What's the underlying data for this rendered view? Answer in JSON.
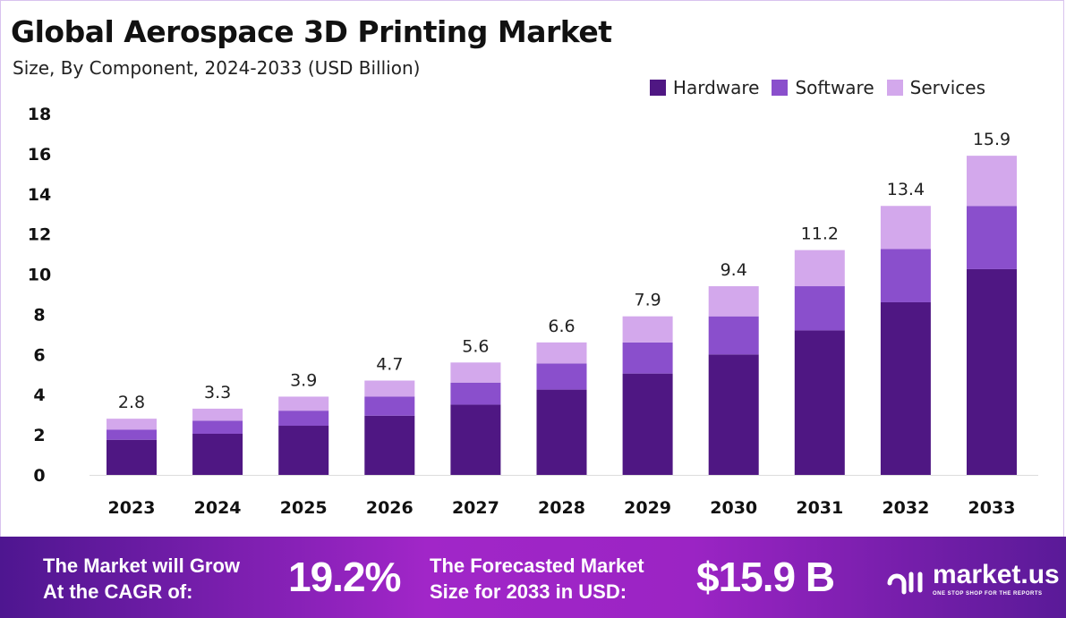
{
  "chart_data": {
    "type": "bar",
    "stacked": true,
    "title": "Global Aerospace 3D Printing Market",
    "subtitle": "Size, By Component, 2024-2033 (USD Billion)",
    "categories": [
      "2023",
      "2024",
      "2025",
      "2026",
      "2027",
      "2028",
      "2029",
      "2030",
      "2031",
      "2032",
      "2033"
    ],
    "series": [
      {
        "name": "Hardware",
        "color": "#4f1783",
        "values": [
          1.75,
          2.05,
          2.45,
          2.95,
          3.5,
          4.25,
          5.05,
          6.0,
          7.2,
          8.6,
          10.25
        ]
      },
      {
        "name": "Software",
        "color": "#8a4fcc",
        "values": [
          0.5,
          0.65,
          0.75,
          0.95,
          1.1,
          1.3,
          1.55,
          1.9,
          2.2,
          2.65,
          3.15
        ]
      },
      {
        "name": "Services",
        "color": "#d3a8ec",
        "values": [
          0.55,
          0.6,
          0.7,
          0.8,
          1.0,
          1.05,
          1.3,
          1.5,
          1.8,
          2.15,
          2.5
        ]
      }
    ],
    "totals": [
      "2.8",
      "3.3",
      "3.9",
      "4.7",
      "5.6",
      "6.6",
      "7.9",
      "9.4",
      "11.2",
      "13.4",
      "15.9"
    ],
    "yticks": [
      "0",
      "2",
      "4",
      "6",
      "8",
      "10",
      "12",
      "14",
      "16",
      "18"
    ],
    "ylim": [
      0,
      18
    ],
    "grid": false,
    "legend_position": "top-right"
  },
  "footer": {
    "cagr_label_1": "The Market will Grow",
    "cagr_label_2": "At the CAGR of:",
    "cagr_value": "19.2%",
    "forecast_label_1": "The Forecasted Market",
    "forecast_label_2": "Size for 2033 in USD:",
    "forecast_value": "$15.9 B",
    "logo_name": "market.us",
    "logo_tagline": "ONE STOP SHOP FOR THE REPORTS"
  }
}
